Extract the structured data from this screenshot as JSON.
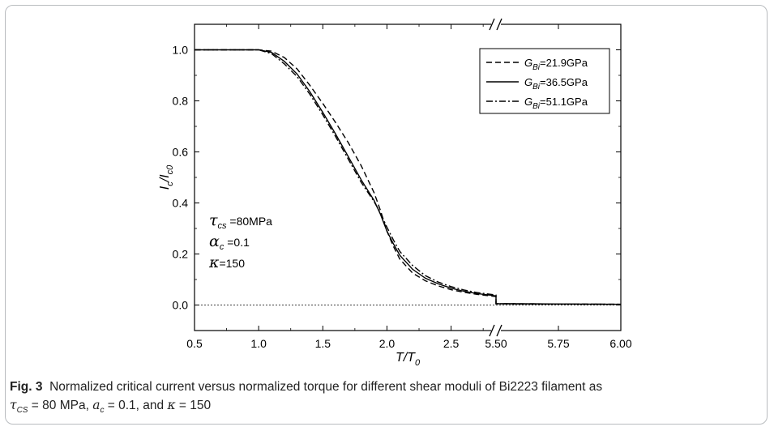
{
  "figure": {
    "label": "Fig. 3",
    "caption_line1": "Normalized critical current versus normalized torque for different shear moduli of Bi2223 filament as",
    "caption_line2": [
      {
        "sym": "τ",
        "sub": "CS",
        "text": " = 80 MPa, "
      },
      {
        "sym": "a",
        "sub": "c",
        "text": " = 0.1, and "
      },
      {
        "sym": "κ",
        "sub": "",
        "text": " = 150"
      }
    ]
  },
  "chart_data": {
    "type": "line",
    "xlabel": {
      "main": "T/T",
      "sub": "0"
    },
    "ylabel": {
      "main": "I",
      "sub1": "c",
      "mid": "/I",
      "sub2": "c0"
    },
    "ylim": [
      -0.1,
      1.1
    ],
    "yticks": [
      0.0,
      0.2,
      0.4,
      0.6,
      0.8,
      1.0
    ],
    "ytick_labels": [
      "0.0",
      "0.2",
      "0.4",
      "0.6",
      "0.8",
      "1.0"
    ],
    "x_segments": [
      {
        "range": [
          0.5,
          2.85
        ],
        "ticks": [
          0.5,
          1.0,
          1.5,
          2.0,
          2.5
        ],
        "tick_labels": [
          "0.5",
          "1.0",
          "1.5",
          "2.0",
          "2.5"
        ]
      },
      {
        "range": [
          5.5,
          6.0
        ],
        "ticks": [
          5.5,
          5.75,
          6.0
        ],
        "tick_labels": [
          "5.50",
          "5.75",
          "6.00"
        ]
      }
    ],
    "legend_position": "top-right",
    "grid": false,
    "reference_line": {
      "y": 0.0,
      "style": "dotted"
    },
    "annotations": [
      {
        "sym": "τ",
        "sub": "cs",
        "text": " =80MPa"
      },
      {
        "sym": "α",
        "sub": "c",
        "text": " =0.1"
      },
      {
        "sym": "κ",
        "sub": "",
        "text": "=150"
      }
    ],
    "series": [
      {
        "name": "21.9GPa",
        "symbol": "G",
        "sub": "Bi",
        "dash": "dashed",
        "x": [
          0.5,
          1.0,
          1.1,
          1.2,
          1.3,
          1.4,
          1.5,
          1.6,
          1.7,
          1.8,
          1.9,
          1.95,
          2.0,
          2.05,
          2.1,
          2.2,
          2.3,
          2.4,
          2.5,
          2.6,
          2.7,
          2.85,
          5.5,
          6.0
        ],
        "y": [
          1.0,
          1.0,
          0.995,
          0.97,
          0.925,
          0.86,
          0.79,
          0.715,
          0.635,
          0.545,
          0.44,
          0.37,
          0.29,
          0.23,
          0.18,
          0.125,
          0.095,
          0.075,
          0.06,
          0.05,
          0.042,
          0.033,
          0.005,
          0.003
        ]
      },
      {
        "name": "36.5GPa",
        "symbol": "G",
        "sub": "Bi",
        "dash": "solid",
        "x": [
          0.5,
          1.0,
          1.1,
          1.2,
          1.3,
          1.4,
          1.5,
          1.6,
          1.7,
          1.8,
          1.9,
          1.95,
          2.0,
          2.05,
          2.1,
          2.2,
          2.3,
          2.4,
          2.5,
          2.6,
          2.7,
          2.85,
          5.5,
          6.0
        ],
        "y": [
          1.0,
          1.0,
          0.99,
          0.955,
          0.905,
          0.835,
          0.755,
          0.67,
          0.58,
          0.49,
          0.41,
          0.355,
          0.29,
          0.24,
          0.195,
          0.14,
          0.105,
          0.083,
          0.066,
          0.054,
          0.045,
          0.036,
          0.005,
          0.003
        ]
      },
      {
        "name": "51.1GPa",
        "symbol": "G",
        "sub": "Bi",
        "dash": "dashdot",
        "x": [
          0.5,
          1.0,
          1.1,
          1.2,
          1.3,
          1.4,
          1.5,
          1.6,
          1.7,
          1.8,
          1.9,
          1.95,
          2.0,
          2.05,
          2.1,
          2.2,
          2.3,
          2.4,
          2.5,
          2.6,
          2.7,
          2.85,
          5.5,
          6.0
        ],
        "y": [
          1.0,
          1.0,
          0.985,
          0.945,
          0.895,
          0.825,
          0.745,
          0.66,
          0.57,
          0.48,
          0.405,
          0.36,
          0.305,
          0.255,
          0.21,
          0.155,
          0.115,
          0.09,
          0.072,
          0.059,
          0.049,
          0.039,
          0.005,
          0.003
        ]
      }
    ]
  }
}
